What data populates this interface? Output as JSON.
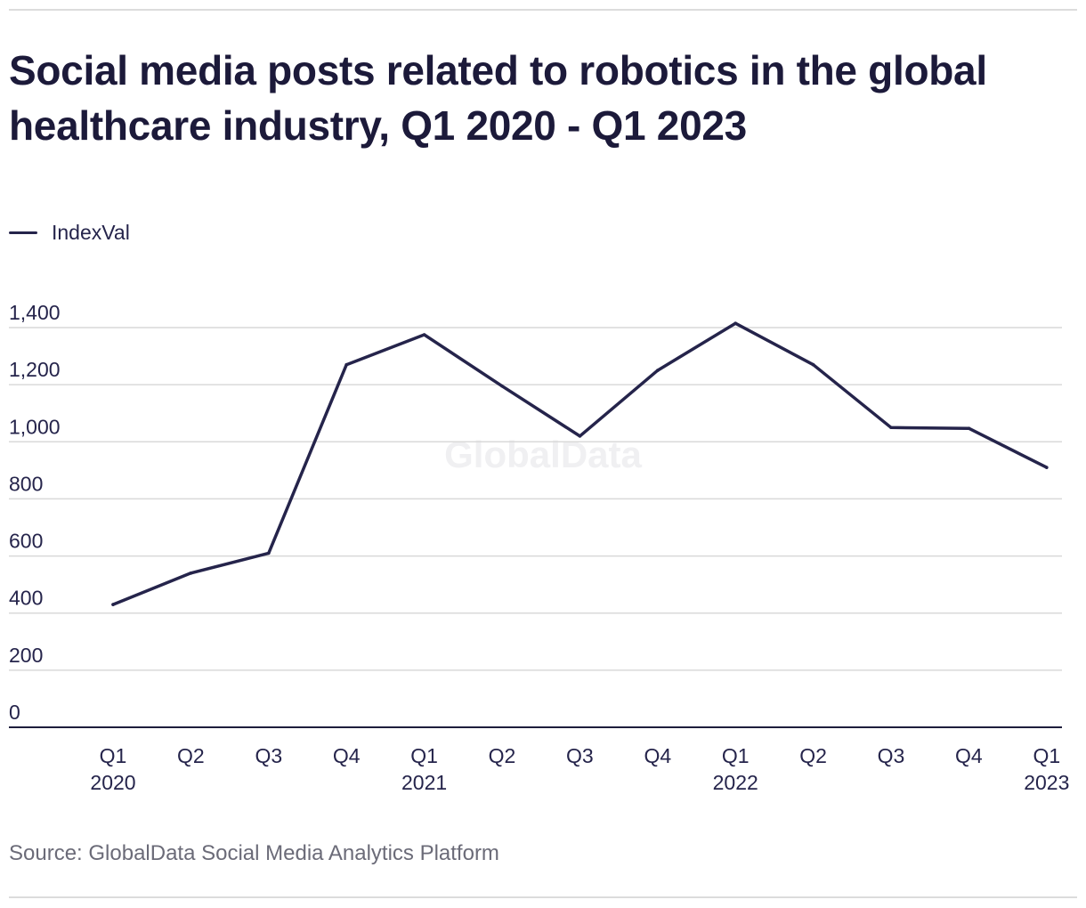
{
  "title": "Social media posts related to robotics in the global healthcare industry, Q1 2020 - Q1 2023",
  "source": "Source: GlobalData Social Media Analytics Platform",
  "watermark": "GlobalData",
  "colors": {
    "line": "#25244b",
    "grid": "#d9d9d9",
    "axis": "#1e1e3c",
    "text": "#25244b"
  },
  "chart_data": {
    "type": "line",
    "title": "Social media posts related to robotics in the global healthcare industry, Q1 2020 - Q1 2023",
    "xlabel": "",
    "ylabel": "",
    "ylim": [
      0,
      1400
    ],
    "yticks": [
      0,
      200,
      400,
      600,
      800,
      1000,
      1200,
      1400
    ],
    "ytick_labels": [
      "0",
      "200",
      "400",
      "600",
      "800",
      "1,000",
      "1,200",
      "1,400"
    ],
    "categories": [
      [
        "Q1",
        "2020"
      ],
      [
        "Q2",
        ""
      ],
      [
        "Q3",
        ""
      ],
      [
        "Q4",
        ""
      ],
      [
        "Q1",
        "2021"
      ],
      [
        "Q2",
        ""
      ],
      [
        "Q3",
        ""
      ],
      [
        "Q4",
        ""
      ],
      [
        "Q1",
        "2022"
      ],
      [
        "Q2",
        ""
      ],
      [
        "Q3",
        ""
      ],
      [
        "Q4",
        ""
      ],
      [
        "Q1",
        "2023"
      ]
    ],
    "legend_position": "top-left",
    "grid": true,
    "series": [
      {
        "name": "IndexVal",
        "values": [
          430,
          540,
          610,
          1270,
          1375,
          1195,
          1020,
          1250,
          1415,
          1270,
          1050,
          1047,
          910
        ]
      }
    ]
  }
}
